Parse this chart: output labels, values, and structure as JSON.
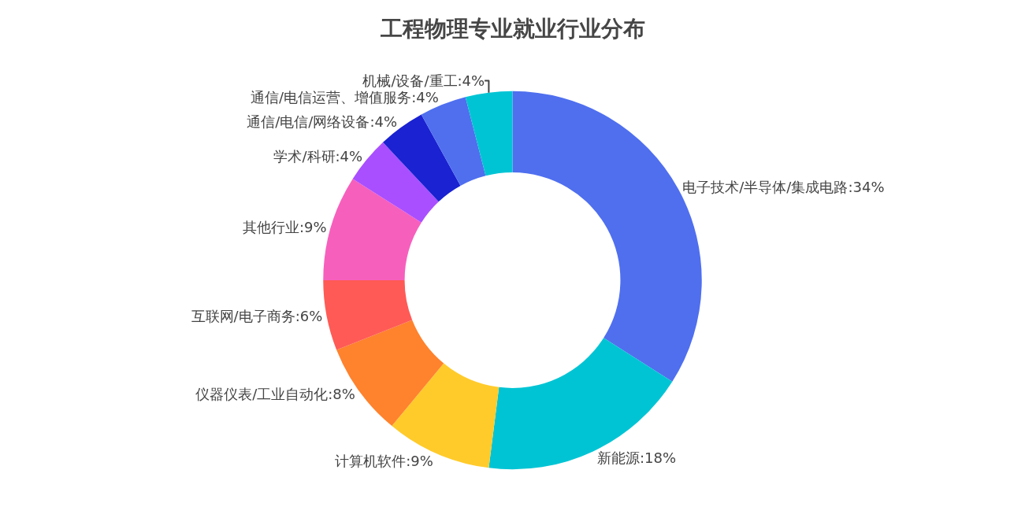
{
  "chart_data": {
    "type": "donut",
    "title": "工程物理专业就业行业分布",
    "categories": [
      "电子技术/半导体/集成电路",
      "新能源",
      "计算机软件",
      "仪器仪表/工业自动化",
      "互联网/电子商务",
      "其他行业",
      "学术/科研",
      "通信/电信/网络设备",
      "通信/电信运营、增值服务",
      "机械/设备/重工"
    ],
    "values": [
      34,
      18,
      9,
      8,
      6,
      9,
      4,
      4,
      4,
      4
    ],
    "value_labels": [
      "34%",
      "18%",
      "9%",
      "8%",
      "6%",
      "9%",
      "4%",
      "4%",
      "4%",
      "4%"
    ],
    "colors": [
      "#4f6fef",
      "#00c4d4",
      "#ffcb2b",
      "#ff822d",
      "#ff5a55",
      "#f75fbd",
      "#a94fff",
      "#1a22d1",
      "#4f6fef",
      "#00c4d4"
    ],
    "legend": false
  }
}
